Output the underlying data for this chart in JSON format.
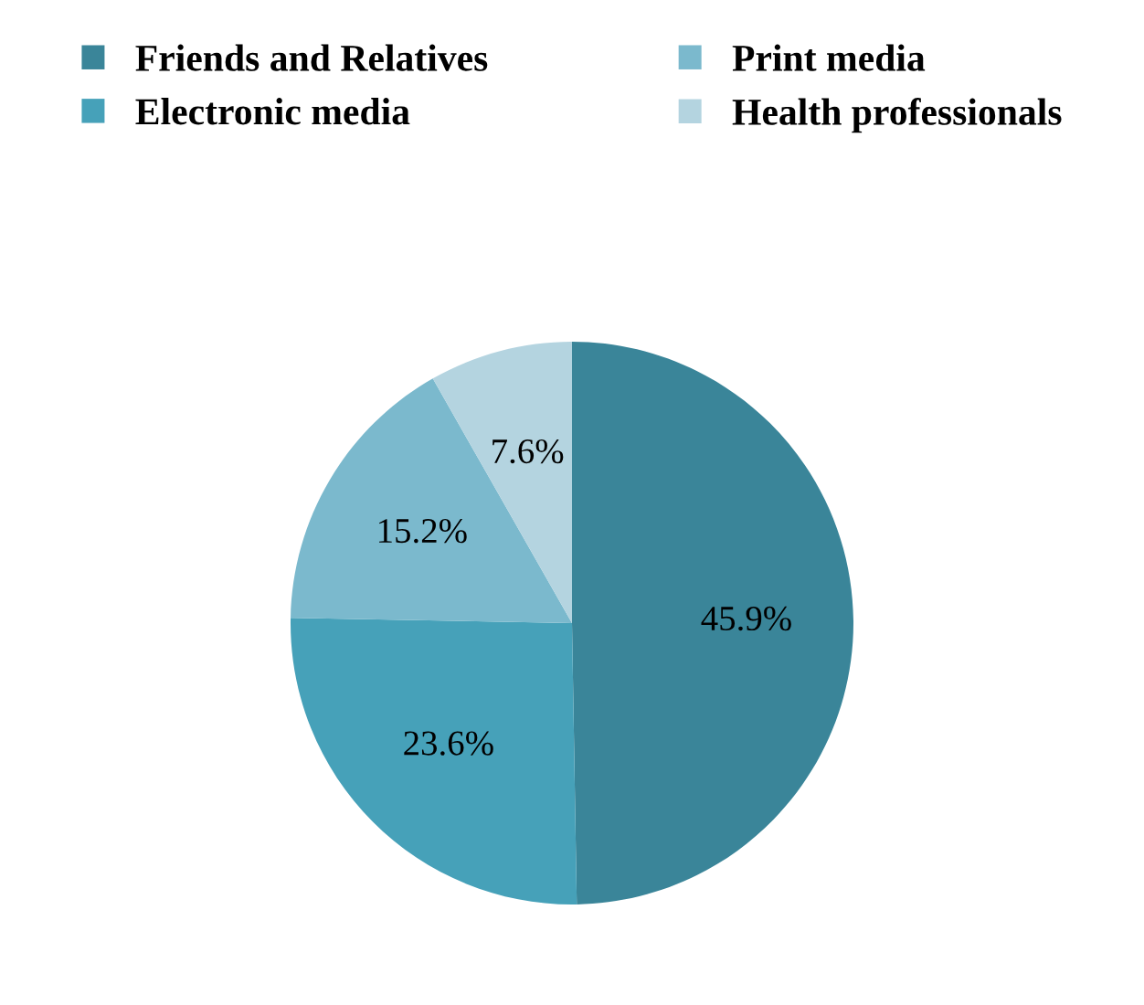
{
  "chart_data": {
    "type": "pie",
    "categories": [
      "Friends and Relatives",
      "Electronic media",
      "Print media",
      "Health professionals"
    ],
    "values": [
      45.9,
      23.6,
      15.2,
      7.6
    ],
    "value_labels": [
      "45.9%",
      "23.6%",
      "15.2%",
      "7.6%"
    ],
    "colors": [
      "#3a8599",
      "#46a1b9",
      "#7bb9cd",
      "#b4d4e0"
    ],
    "legend": "top"
  }
}
